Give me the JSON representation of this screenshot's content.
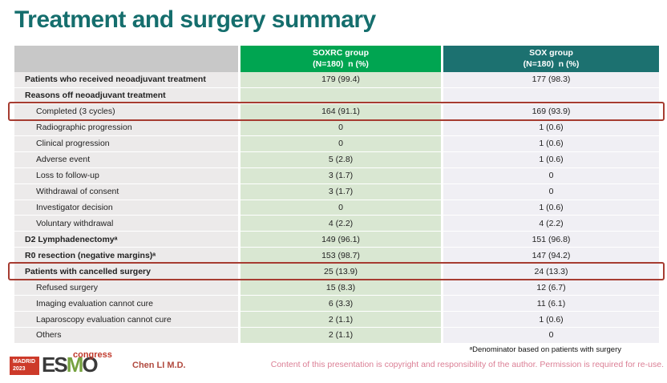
{
  "slide": {
    "title": "Treatment and surgery summary",
    "footnote": "ᵃDenominator based on patients with surgery",
    "copyright": "Content of this presentation is copyright and responsibility of the author. Permission is required for re-use.",
    "author": "Chen LI M.D."
  },
  "logo": {
    "badge_line1": "MADRID",
    "badge_line2": "2023",
    "esmo_es": "ES",
    "esmo_m": "M",
    "esmo_o": "O",
    "congress": "congress"
  },
  "colors": {
    "title_teal": "#156e6d",
    "header_green": "#00a551",
    "header_teal": "#1c7170",
    "header_gray": "#c8c8c8",
    "label_cell": "#eceaea",
    "soxrc_cell": "#d9e7d2",
    "sox_cell": "#f0eff4",
    "highlight_red": "#a63c31",
    "copyright_pink": "#db7f95",
    "author_red": "#b14a3f"
  },
  "table": {
    "header": {
      "group1": {
        "line1": "SOXRC group",
        "line2": "(N=180)  n (%)"
      },
      "group2": {
        "line1": "SOX group",
        "line2": "(N=180)  n (%)"
      }
    },
    "rows": [
      {
        "label": "Patients who received neoadjuvant treatment",
        "soxrc": "179 (99.4)",
        "sox": "177 (98.3)",
        "bold": true,
        "indent": false,
        "highlight": false
      },
      {
        "label": "Reasons off neoadjuvant treatment",
        "soxrc": "",
        "sox": "",
        "bold": true,
        "indent": false,
        "highlight": false
      },
      {
        "label": "Completed (3 cycles)",
        "soxrc": "164 (91.1)",
        "sox": "169 (93.9)",
        "bold": false,
        "indent": true,
        "highlight": true
      },
      {
        "label": "Radiographic progression",
        "soxrc": "0",
        "sox": "1 (0.6)",
        "bold": false,
        "indent": true,
        "highlight": false
      },
      {
        "label": "Clinical progression",
        "soxrc": "0",
        "sox": "1 (0.6)",
        "bold": false,
        "indent": true,
        "highlight": false
      },
      {
        "label": "Adverse event",
        "soxrc": "5 (2.8)",
        "sox": "1 (0.6)",
        "bold": false,
        "indent": true,
        "highlight": false
      },
      {
        "label": "Loss to follow-up",
        "soxrc": "3 (1.7)",
        "sox": "0",
        "bold": false,
        "indent": true,
        "highlight": false
      },
      {
        "label": "Withdrawal of consent",
        "soxrc": "3 (1.7)",
        "sox": "0",
        "bold": false,
        "indent": true,
        "highlight": false
      },
      {
        "label": "Investigator decision",
        "soxrc": "0",
        "sox": "1 (0.6)",
        "bold": false,
        "indent": true,
        "highlight": false
      },
      {
        "label": "Voluntary withdrawal",
        "soxrc": "4 (2.2)",
        "sox": "4 (2.2)",
        "bold": false,
        "indent": true,
        "highlight": false
      },
      {
        "label": "D2 Lymphadenectomyᵃ",
        "soxrc": "149 (96.1)",
        "sox": "151 (96.8)",
        "bold": true,
        "indent": false,
        "highlight": false
      },
      {
        "label": "R0 resection (negative margins)ᵃ",
        "soxrc": "153 (98.7)",
        "sox": "147 (94.2)",
        "bold": true,
        "indent": false,
        "highlight": false
      },
      {
        "label": "Patients with cancelled surgery",
        "soxrc": "25 (13.9)",
        "sox": "24 (13.3)",
        "bold": true,
        "indent": false,
        "highlight": true
      },
      {
        "label": "Refused surgery",
        "soxrc": "15 (8.3)",
        "sox": "12 (6.7)",
        "bold": false,
        "indent": true,
        "highlight": false
      },
      {
        "label": "Imaging evaluation cannot cure",
        "soxrc": "6 (3.3)",
        "sox": "11 (6.1)",
        "bold": false,
        "indent": true,
        "highlight": false
      },
      {
        "label": "Laparoscopy evaluation cannot cure",
        "soxrc": "2 (1.1)",
        "sox": "1 (0.6)",
        "bold": false,
        "indent": true,
        "highlight": false
      },
      {
        "label": "Others",
        "soxrc": "2 (1.1)",
        "sox": "0",
        "bold": false,
        "indent": true,
        "highlight": false
      }
    ]
  }
}
